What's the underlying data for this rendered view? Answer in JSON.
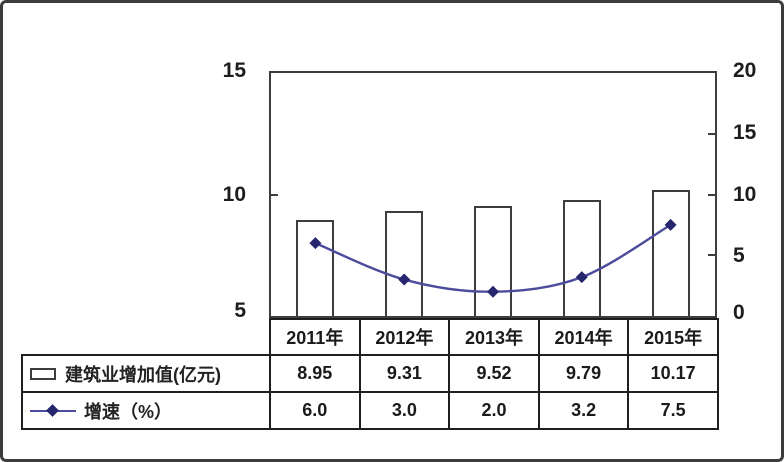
{
  "figure": {
    "background": "#ffffff",
    "border_color": "#3c3c3c"
  },
  "chart_data": {
    "type": "bar+line combo with data table",
    "title": "",
    "categories": [
      "2011年",
      "2012年",
      "2013年",
      "2014年",
      "2015年"
    ],
    "series": [
      {
        "name": "建筑业增加值(亿元)",
        "type": "bar",
        "axis": "left",
        "values": [
          8.95,
          9.31,
          9.52,
          9.79,
          10.17
        ],
        "labels": [
          "8.95",
          "9.31",
          "9.52",
          "9.79",
          "10.17"
        ]
      },
      {
        "name": "增速（%）",
        "type": "line",
        "axis": "right",
        "values": [
          6.0,
          3.0,
          2.0,
          3.2,
          7.5
        ],
        "labels": [
          "6.0",
          "3.0",
          "2.0",
          "3.2",
          "7.5"
        ]
      }
    ],
    "left_axis": {
      "min": 5,
      "max": 15,
      "ticks": [
        5,
        10,
        15
      ],
      "tick_labels": [
        "5",
        "10",
        "15"
      ]
    },
    "right_axis": {
      "min": 0,
      "max": 20,
      "ticks": [
        0,
        5,
        10,
        15,
        20
      ],
      "tick_labels": [
        "0",
        "5",
        "10",
        "15",
        "20"
      ]
    },
    "grid": false,
    "legend_position": "table-left",
    "colors": {
      "line": "#4c4c9c",
      "marker": "#26266e",
      "bar_fill": "#ffffff",
      "bar_border": "#3d3d3d",
      "axis_text": "#1d1d1d",
      "table_border": "#1f1f1f"
    }
  }
}
